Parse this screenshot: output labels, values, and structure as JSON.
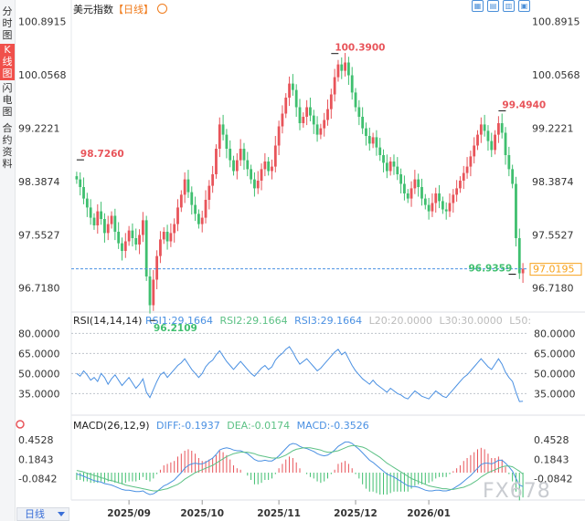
{
  "sidebar": {
    "tabs": [
      {
        "label": "分\n时\n图",
        "active": false
      },
      {
        "label": "K\n线\n图",
        "active": true
      },
      {
        "label": "闪\n电\n图",
        "active": false
      },
      {
        "label": "合\n约\n资\n料",
        "active": false
      }
    ]
  },
  "title": {
    "name": "美元指数",
    "period_tag": "【日线】",
    "icon": "target-icon"
  },
  "toolbar": {
    "icons": [
      "grid-icon",
      "chart-icon",
      "settings-icon",
      "download-icon"
    ]
  },
  "period_button": "日线",
  "watermark": "FX678",
  "colors": {
    "up": "#e8545a",
    "down": "#3fbf6f",
    "rsi": "#4a90e2",
    "diff": "#4a90e2",
    "dea": "#5cc185",
    "current": "#f7a21b"
  },
  "chart_data": {
    "type": "candlestick",
    "price_axis": {
      "ticks": [
        "100.8915",
        "100.0568",
        "99.2221",
        "98.3874",
        "97.5527",
        "96.7180"
      ],
      "ylim": [
        96.4,
        101.0
      ]
    },
    "annotations": {
      "high_label": "100.3900",
      "peak_label": "99.4940",
      "early_label": "98.7260",
      "low_label": "96.2109",
      "recent_low_label": "96.9359"
    },
    "current_price": "97.0195",
    "x_ticks": [
      "2025/09",
      "2025/10",
      "2025/11",
      "2025/12",
      "2026/01"
    ],
    "closes": [
      98.42,
      98.3,
      98.12,
      97.98,
      97.82,
      97.7,
      97.92,
      97.8,
      97.58,
      97.72,
      97.85,
      97.6,
      97.42,
      97.3,
      97.45,
      97.62,
      97.5,
      97.4,
      97.55,
      97.78,
      96.9,
      96.45,
      96.85,
      97.22,
      97.48,
      97.6,
      97.45,
      97.58,
      97.72,
      97.98,
      98.18,
      98.42,
      98.22,
      98.02,
      97.88,
      97.72,
      97.82,
      98.1,
      98.32,
      98.5,
      98.9,
      99.28,
      99.12,
      98.9,
      98.72,
      98.55,
      98.72,
      98.9,
      98.72,
      98.58,
      98.42,
      98.28,
      98.4,
      98.58,
      98.7,
      98.55,
      98.62,
      98.95,
      99.25,
      99.45,
      99.7,
      99.92,
      99.82,
      99.55,
      99.3,
      99.4,
      99.55,
      99.42,
      99.28,
      99.12,
      99.22,
      99.35,
      99.52,
      99.75,
      100.02,
      100.22,
      100.12,
      100.25,
      100.05,
      99.78,
      99.55,
      99.4,
      99.22,
      99.1,
      98.98,
      99.08,
      98.92,
      98.8,
      98.68,
      98.55,
      98.7,
      98.62,
      98.5,
      98.35,
      98.2,
      98.12,
      98.28,
      98.42,
      98.3,
      98.12,
      98.02,
      97.92,
      98.05,
      98.2,
      98.08,
      97.95,
      97.92,
      98.05,
      98.18,
      98.28,
      98.4,
      98.52,
      98.62,
      98.78,
      98.95,
      99.12,
      99.28,
      99.18,
      99.02,
      98.88,
      99.12,
      99.3,
      99.15,
      98.8,
      98.58,
      98.35,
      97.5,
      96.95,
      97.02
    ],
    "rsi": {
      "label": "RSI(14,14,14)",
      "values_text": [
        "RSI1:29.1664",
        "RSI2:29.1664",
        "RSI3:29.1664",
        "L20:20.0000",
        "L30:30.0000",
        "L50:"
      ],
      "ticks": [
        "80.0000",
        "65.0000",
        "50.0000",
        "35.0000"
      ],
      "ylim": [
        25,
        85
      ],
      "series": [
        50,
        48,
        52,
        49,
        45,
        47,
        44,
        50,
        47,
        42,
        46,
        49,
        45,
        41,
        44,
        47,
        43,
        39,
        42,
        46,
        36,
        32,
        38,
        44,
        49,
        51,
        47,
        50,
        53,
        56,
        58,
        61,
        57,
        53,
        50,
        47,
        50,
        55,
        58,
        60,
        64,
        67,
        63,
        59,
        56,
        53,
        56,
        59,
        56,
        53,
        50,
        48,
        51,
        54,
        56,
        53,
        55,
        60,
        63,
        65,
        68,
        70,
        66,
        61,
        57,
        59,
        61,
        58,
        55,
        52,
        54,
        57,
        60,
        63,
        66,
        68,
        64,
        66,
        61,
        56,
        52,
        49,
        46,
        44,
        42,
        45,
        42,
        40,
        38,
        36,
        39,
        37,
        35,
        34,
        32,
        31,
        34,
        37,
        35,
        33,
        32,
        31,
        34,
        37,
        35,
        33,
        32,
        35,
        38,
        41,
        44,
        47,
        49,
        52,
        55,
        58,
        61,
        58,
        55,
        53,
        57,
        61,
        57,
        51,
        47,
        44,
        36,
        29,
        29.2
      ]
    },
    "macd": {
      "label": "MACD(26,12,9)",
      "values_text": [
        "DIFF:-0.1937",
        "DEA:-0.0174",
        "MACD:-0.3526"
      ],
      "ticks": [
        "0.4528",
        "0.1843",
        "-0.0842"
      ],
      "ylim": [
        -0.35,
        0.6
      ],
      "diff": [
        -0.02,
        -0.03,
        -0.05,
        -0.07,
        -0.09,
        -0.11,
        -0.12,
        -0.13,
        -0.15,
        -0.16,
        -0.17,
        -0.19,
        -0.21,
        -0.23,
        -0.24,
        -0.24,
        -0.25,
        -0.26,
        -0.26,
        -0.25,
        -0.28,
        -0.3,
        -0.29,
        -0.26,
        -0.22,
        -0.18,
        -0.16,
        -0.13,
        -0.1,
        -0.05,
        0.0,
        0.06,
        0.1,
        0.12,
        0.13,
        0.12,
        0.12,
        0.14,
        0.17,
        0.2,
        0.25,
        0.31,
        0.33,
        0.34,
        0.33,
        0.31,
        0.3,
        0.3,
        0.28,
        0.26,
        0.22,
        0.18,
        0.16,
        0.16,
        0.17,
        0.16,
        0.16,
        0.19,
        0.23,
        0.28,
        0.33,
        0.38,
        0.4,
        0.39,
        0.36,
        0.34,
        0.33,
        0.31,
        0.29,
        0.26,
        0.24,
        0.23,
        0.24,
        0.27,
        0.31,
        0.36,
        0.39,
        0.42,
        0.42,
        0.4,
        0.36,
        0.32,
        0.27,
        0.22,
        0.17,
        0.14,
        0.1,
        0.06,
        0.02,
        -0.02,
        -0.04,
        -0.06,
        -0.09,
        -0.12,
        -0.15,
        -0.18,
        -0.19,
        -0.19,
        -0.2,
        -0.22,
        -0.24,
        -0.25,
        -0.25,
        -0.24,
        -0.24,
        -0.25,
        -0.25,
        -0.24,
        -0.22,
        -0.19,
        -0.16,
        -0.12,
        -0.08,
        -0.04,
        0.01,
        0.06,
        0.11,
        0.13,
        0.13,
        0.12,
        0.14,
        0.17,
        0.17,
        0.13,
        0.08,
        0.02,
        -0.08,
        -0.17,
        -0.19
      ],
      "dea": [
        0.03,
        0.02,
        0.01,
        -0.01,
        -0.02,
        -0.04,
        -0.05,
        -0.07,
        -0.08,
        -0.1,
        -0.11,
        -0.12,
        -0.14,
        -0.15,
        -0.17,
        -0.18,
        -0.19,
        -0.2,
        -0.21,
        -0.22,
        -0.23,
        -0.24,
        -0.25,
        -0.25,
        -0.24,
        -0.23,
        -0.22,
        -0.2,
        -0.18,
        -0.16,
        -0.13,
        -0.09,
        -0.06,
        -0.03,
        0.0,
        0.02,
        0.04,
        0.06,
        0.08,
        0.1,
        0.13,
        0.16,
        0.19,
        0.22,
        0.24,
        0.26,
        0.27,
        0.28,
        0.28,
        0.28,
        0.27,
        0.26,
        0.24,
        0.23,
        0.22,
        0.21,
        0.2,
        0.2,
        0.2,
        0.22,
        0.24,
        0.27,
        0.3,
        0.32,
        0.33,
        0.34,
        0.34,
        0.34,
        0.33,
        0.32,
        0.31,
        0.29,
        0.28,
        0.28,
        0.29,
        0.3,
        0.32,
        0.34,
        0.36,
        0.37,
        0.37,
        0.36,
        0.35,
        0.33,
        0.3,
        0.27,
        0.24,
        0.21,
        0.17,
        0.13,
        0.1,
        0.07,
        0.04,
        0.01,
        -0.02,
        -0.05,
        -0.08,
        -0.1,
        -0.12,
        -0.14,
        -0.16,
        -0.18,
        -0.19,
        -0.2,
        -0.21,
        -0.22,
        -0.22,
        -0.23,
        -0.23,
        -0.22,
        -0.21,
        -0.2,
        -0.18,
        -0.16,
        -0.13,
        -0.1,
        -0.06,
        -0.03,
        0.0,
        0.02,
        0.04,
        0.06,
        0.08,
        0.09,
        0.09,
        0.08,
        0.05,
        0.02,
        -0.02
      ]
    }
  }
}
